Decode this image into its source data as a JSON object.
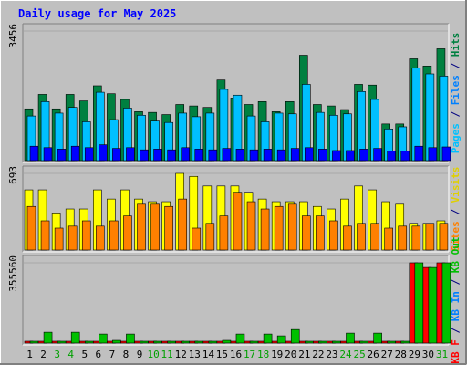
{
  "chart_data": {
    "type": "bar",
    "title": "Daily usage for May 2025",
    "categories": [
      "1",
      "2",
      "3",
      "4",
      "5",
      "6",
      "7",
      "8",
      "9",
      "10",
      "11",
      "12",
      "13",
      "14",
      "15",
      "16",
      "17",
      "18",
      "19",
      "20",
      "21",
      "22",
      "23",
      "24",
      "25",
      "26",
      "27",
      "28",
      "29",
      "30",
      "31"
    ],
    "weekend_days": [
      "3",
      "4",
      "10",
      "11",
      "17",
      "18",
      "24",
      "25",
      "31"
    ],
    "panels": [
      {
        "name": "hits",
        "ymax_label": "3456",
        "ymax": 3456,
        "series": [
          {
            "name": "Hits",
            "color": "#008040",
            "values": [
              1381,
              1766,
              1381,
              1766,
              1592,
              1996,
              1784,
              1631,
              1305,
              1286,
              1228,
              1497,
              1458,
              1420,
              2150,
              1669,
              1497,
              1574,
              1305,
              1574,
              2811,
              1497,
              1458,
              1362,
              2034,
              2015,
              977,
              977,
              2715,
              2523,
              2983
            ]
          },
          {
            "name": "Files",
            "color": "#00c0ff",
            "values": [
              1190,
              1573,
              1267,
              1420,
              1036,
              1823,
              1094,
              1401,
              1210,
              1056,
              1017,
              1267,
              1171,
              1267,
              1900,
              1746,
              1190,
              1036,
              1267,
              1247,
              2034,
              1286,
              1210,
              1247,
              1842,
              1631,
              844,
              901,
              2465,
              2312,
              2254
            ]
          },
          {
            "name": "Pages",
            "color": "#0000ff",
            "values": [
              384,
              346,
              307,
              384,
              346,
              422,
              326,
              346,
              288,
              307,
              288,
              346,
              307,
              288,
              326,
              307,
              288,
              307,
              288,
              326,
              346,
              307,
              269,
              269,
              307,
              326,
              250,
              250,
              384,
              346,
              365
            ]
          }
        ]
      },
      {
        "name": "visits",
        "ymax_label": "693",
        "ymax": 693,
        "series": [
          {
            "name": "Visits",
            "color": "#ffff00",
            "values": [
              544,
              544,
              335,
              371,
              371,
              544,
              461,
              544,
              461,
              437,
              437,
              693,
              666,
              579,
              579,
              579,
              522,
              461,
              437,
              437,
              437,
              394,
              371,
              461,
              579,
              544,
              437,
              414,
              241,
              241,
              264
            ]
          },
          {
            "name": "Sites",
            "color": "#ff8000",
            "values": [
              394,
              264,
              198,
              216,
              264,
              216,
              264,
              308,
              414,
              414,
              394,
              461,
              198,
              241,
              308,
              522,
              437,
              371,
              394,
              414,
              308,
              308,
              264,
              216,
              241,
              241,
              198,
              216,
              216,
              241,
              241
            ]
          }
        ]
      },
      {
        "name": "kbytes",
        "ymax_label": "355560",
        "ymax": 355560,
        "series": [
          {
            "name": "KB F",
            "color": "#ff0000",
            "values": [
              8000,
              8000,
              8000,
              8000,
              4000,
              4000,
              8000,
              8000,
              8000,
              8000,
              8000,
              8000,
              8000,
              8000,
              8000,
              4000,
              8000,
              8000,
              4000,
              4000,
              8000,
              8000,
              8000,
              8000,
              8000,
              4000,
              4000,
              4000,
              355560,
              335000,
              355560
            ]
          },
          {
            "name": "KB In",
            "color": "#0080ff",
            "values": [
              0,
              0,
              0,
              0,
              0,
              0,
              0,
              0,
              0,
              0,
              0,
              0,
              0,
              0,
              0,
              0,
              0,
              0,
              0,
              0,
              0,
              0,
              0,
              0,
              0,
              0,
              0,
              0,
              0,
              0,
              0
            ]
          },
          {
            "name": "KB Out",
            "color": "#00c000",
            "values": [
              8000,
              48000,
              8000,
              48000,
              4000,
              40000,
              12000,
              40000,
              8000,
              8000,
              8000,
              8000,
              8000,
              8000,
              12000,
              40000,
              8000,
              40000,
              32000,
              60000,
              8000,
              8000,
              8000,
              44000,
              8000,
              44000,
              4000,
              4000,
              355560,
              335000,
              355560
            ]
          }
        ]
      }
    ],
    "right_labels": [
      {
        "panel": "hits",
        "parts": [
          {
            "text": "Pages",
            "color": "#00c0ff"
          },
          {
            "text": " / ",
            "color": "#000080"
          },
          {
            "text": "Files",
            "color": "#0080ff"
          },
          {
            "text": " / ",
            "color": "#000080"
          },
          {
            "text": "Hits",
            "color": "#008040"
          }
        ]
      },
      {
        "panel": "visits",
        "parts": [
          {
            "text": "Sites",
            "color": "#ff8000"
          },
          {
            "text": " / ",
            "color": "#000080"
          },
          {
            "text": "Visits",
            "color": "#e0d000"
          }
        ]
      },
      {
        "panel": "kbytes",
        "parts": [
          {
            "text": "KB F",
            "color": "#ff0000"
          },
          {
            "text": " / ",
            "color": "#000080"
          },
          {
            "text": "KB In",
            "color": "#0080ff"
          },
          {
            "text": " / ",
            "color": "#000080"
          },
          {
            "text": "KB Out",
            "color": "#00c000"
          }
        ]
      }
    ],
    "colors": {
      "background": "#c0c0c0",
      "plot_background": "#c0c0c0",
      "title": "#0000ff",
      "weekday_label": "#000000",
      "weekend_label": "#00a000",
      "axis_label": "#000000"
    }
  }
}
